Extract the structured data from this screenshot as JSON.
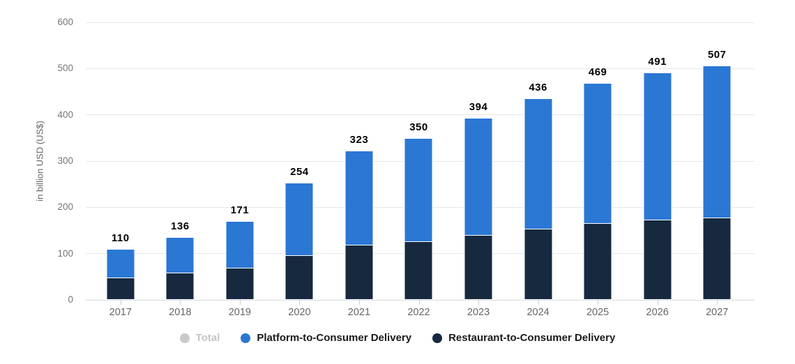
{
  "chart_data": {
    "type": "bar",
    "stacked": true,
    "ylabel": "in billion USD (US$)",
    "categories": [
      "2017",
      "2018",
      "2019",
      "2020",
      "2021",
      "2022",
      "2023",
      "2024",
      "2025",
      "2026",
      "2027"
    ],
    "series": [
      {
        "name": "Restaurant-to-Consumer Delivery",
        "color": "#16293f",
        "values": [
          47,
          57,
          68,
          95,
          117,
          125,
          138,
          153,
          165,
          172,
          177
        ]
      },
      {
        "name": "Platform-to-Consumer Delivery",
        "color": "#2b77d4",
        "values": [
          63,
          79,
          103,
          159,
          206,
          225,
          256,
          283,
          304,
          319,
          330
        ]
      }
    ],
    "totals": [
      110,
      136,
      171,
      254,
      323,
      350,
      394,
      436,
      469,
      491,
      507
    ],
    "ylim": [
      0,
      600
    ],
    "y_ticks": [
      600,
      500,
      400,
      300,
      200,
      100,
      0
    ],
    "grid": true,
    "legend_position": "bottom"
  },
  "legend": {
    "items": [
      {
        "label": "Total",
        "color": "#c9c9c9",
        "disabled": true
      },
      {
        "label": "Platform-to-Consumer Delivery",
        "color": "#2b77d4",
        "disabled": false
      },
      {
        "label": "Restaurant-to-Consumer Delivery",
        "color": "#16293f",
        "disabled": false
      }
    ]
  },
  "colors": {
    "background": "#ffffff",
    "gridline": "#e6e6e6",
    "axis_line": "#d6dbe1",
    "tick": "#cccccc",
    "y_label_text": "#767676",
    "x_label_text": "#666666",
    "value_label_text": "#000000"
  }
}
